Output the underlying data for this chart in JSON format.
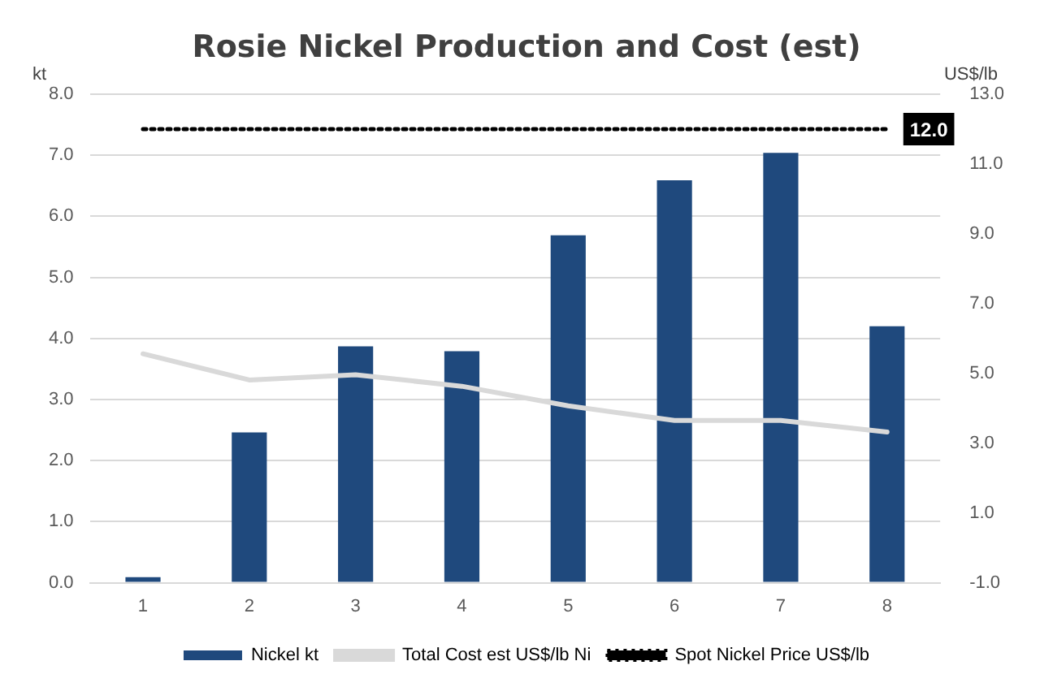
{
  "chart_data": {
    "type": "bar",
    "title": "Rosie Nickel Production and Cost (est)",
    "ylabel": "kt",
    "y2label": "US$/lb",
    "categories": [
      "1",
      "2",
      "3",
      "4",
      "5",
      "6",
      "7",
      "8"
    ],
    "series": [
      {
        "name": "Nickel kt",
        "color": "#1f497d",
        "values": [
          0.09,
          2.46,
          3.87,
          3.79,
          5.69,
          6.59,
          7.04,
          4.2
        ]
      },
      {
        "name": "Total Cost est US$/lb Ni",
        "type": "line",
        "axis": "y2",
        "color": "#d9d9d9",
        "marker": "none",
        "line_style": "solid",
        "values": [
          5.56,
          4.81,
          4.96,
          4.63,
          4.07,
          3.65,
          3.65,
          3.32
        ]
      },
      {
        "name": "Spot Nickel Price US$/lb",
        "type": "line",
        "axis": "y2",
        "color": "#000000",
        "marker": "none",
        "line_style": "dotted",
        "values": [
          12,
          12,
          12,
          12,
          12,
          12,
          12,
          12
        ],
        "value_labels": [
          null,
          null,
          null,
          null,
          null,
          null,
          null,
          "12.0"
        ]
      }
    ],
    "ylim": [
      0,
      8
    ],
    "yticks": [
      {
        "value": 0,
        "label": "0.0"
      },
      {
        "value": 1,
        "label": "1.0"
      },
      {
        "value": 2,
        "label": "2.0"
      },
      {
        "value": 3,
        "label": "3.0"
      },
      {
        "value": 4,
        "label": "4.0"
      },
      {
        "value": 5,
        "label": "5.0"
      },
      {
        "value": 6,
        "label": "6.0"
      },
      {
        "value": 7,
        "label": "7.0"
      },
      {
        "value": 8,
        "label": "8.0"
      }
    ],
    "y2lim": [
      -1,
      13
    ],
    "y2ticks": [
      {
        "value": -1,
        "label": "-1.0"
      },
      {
        "value": 1,
        "label": "1.0"
      },
      {
        "value": 3,
        "label": "3.0"
      },
      {
        "value": 5,
        "label": "5.0"
      },
      {
        "value": 7,
        "label": "7.0"
      },
      {
        "value": 9,
        "label": "9.0"
      },
      {
        "value": 11,
        "label": "11.0"
      },
      {
        "value": 13,
        "label": "13.0"
      }
    ],
    "grid": "y",
    "legend": "bottom"
  }
}
